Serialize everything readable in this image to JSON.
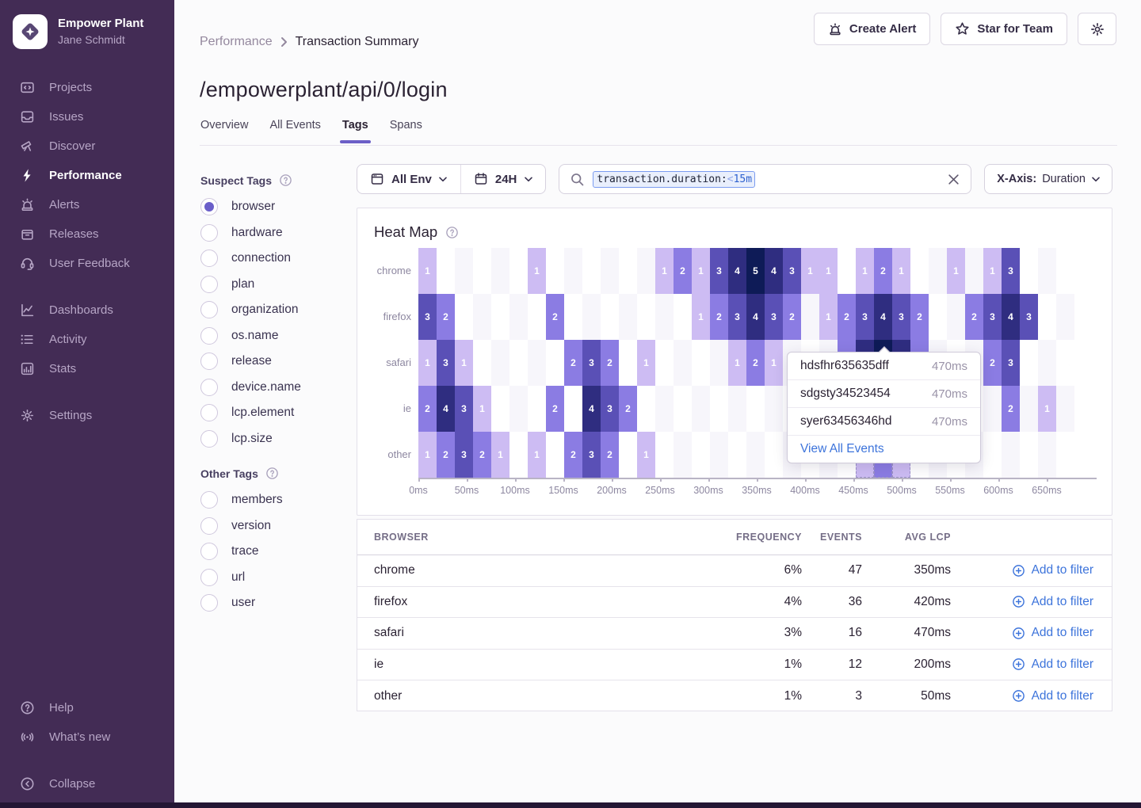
{
  "colors": {
    "accent": "#6C5FC7",
    "sidebar_bg": "#432c55",
    "link_blue": "#3d74db",
    "heat_scale": {
      "1": "#cdbcf3",
      "2": "#8b7ce3",
      "3": "#5a50b6",
      "4": "#2f2d80",
      "5": "#0e1b57"
    },
    "heat_empty_alt": "#f7f6fb"
  },
  "sidebar": {
    "org": "Empower Plant",
    "user": "Jane Schmidt",
    "sections": [
      {
        "items": [
          {
            "label": "Projects",
            "icon": "projects"
          },
          {
            "label": "Issues",
            "icon": "issues"
          },
          {
            "label": "Discover",
            "icon": "discover"
          },
          {
            "label": "Performance",
            "icon": "performance",
            "active": true
          },
          {
            "label": "Alerts",
            "icon": "alerts"
          },
          {
            "label": "Releases",
            "icon": "releases"
          },
          {
            "label": "User Feedback",
            "icon": "feedback"
          }
        ]
      },
      {
        "items": [
          {
            "label": "Dashboards",
            "icon": "dashboards"
          },
          {
            "label": "Activity",
            "icon": "activity"
          },
          {
            "label": "Stats",
            "icon": "stats"
          }
        ]
      },
      {
        "items": [
          {
            "label": "Settings",
            "icon": "settings"
          }
        ]
      }
    ],
    "footer": [
      {
        "label": "Help",
        "icon": "help"
      },
      {
        "label": "What’s new",
        "icon": "broadcast"
      }
    ],
    "collapse": {
      "label": "Collapse",
      "icon": "collapse"
    }
  },
  "topbar": {
    "create_alert": "Create Alert",
    "star_for_team": "Star for Team"
  },
  "breadcrumb": {
    "parent": "Performance",
    "current": "Transaction Summary"
  },
  "page": {
    "title": "/empowerplant/api/0/login"
  },
  "tabs": {
    "items": [
      "Overview",
      "All Events",
      "Tags",
      "Spans"
    ],
    "active": "Tags"
  },
  "filters": {
    "env": "All Env",
    "time": "24H",
    "search_key": "transaction.duration:",
    "search_op": "<",
    "search_val": "15m",
    "xaxis_label": "X-Axis:",
    "xaxis_value": "Duration"
  },
  "tag_rail": {
    "suspect_title": "Suspect Tags",
    "suspect": [
      "browser",
      "hardware",
      "connection",
      "plan",
      "organization",
      "os.name",
      "release",
      "device.name",
      "lcp.element",
      "lcp.size"
    ],
    "selected": "browser",
    "other_title": "Other Tags",
    "other": [
      "members",
      "version",
      "trace",
      "url",
      "user"
    ]
  },
  "heatmap": {
    "title": "Heat Map",
    "x_labels": [
      "0ms",
      "50ms",
      "100ms",
      "150ms",
      "200ms",
      "250ms",
      "300ms",
      "350ms",
      "400ms",
      "450ms",
      "500ms",
      "550ms",
      "600ms",
      "650ms"
    ],
    "columns": 36,
    "rows": [
      {
        "label": "chrome",
        "cells": {
          "0": 1,
          "6": 1,
          "13": 1,
          "14": 2,
          "15": 1,
          "16": 3,
          "17": 4,
          "18": 5,
          "19": 4,
          "20": 3,
          "21": 1,
          "22": 1,
          "24": 1,
          "25": 2,
          "26": 1,
          "29": 1,
          "31": 1,
          "32": 3
        }
      },
      {
        "label": "firefox",
        "cells": {
          "0": 3,
          "1": 2,
          "7": 2,
          "15": 1,
          "16": 2,
          "17": 3,
          "18": 4,
          "19": 3,
          "20": 2,
          "22": 1,
          "23": 2,
          "24": 3,
          "25": 4,
          "26": 3,
          "27": 2,
          "30": 2,
          "31": 3,
          "32": 4,
          "33": 3
        }
      },
      {
        "label": "safari",
        "cells": {
          "0": 1,
          "1": 3,
          "2": 1,
          "8": 2,
          "9": 3,
          "10": 2,
          "12": 1,
          "17": 1,
          "18": 2,
          "19": 1,
          "23": 2,
          "24": 4,
          "25": 5,
          "26": 4,
          "27": 2,
          "31": 2,
          "32": 3
        }
      },
      {
        "label": "ie",
        "cells": {
          "0": 2,
          "1": 4,
          "2": 3,
          "3": 1,
          "7": 2,
          "9": 4,
          "10": 3,
          "11": 2,
          "32": 2,
          "34": 1
        }
      },
      {
        "label": "other",
        "cells": {
          "0": 1,
          "1": 2,
          "2": 3,
          "3": 2,
          "4": 1,
          "6": 1,
          "8": 2,
          "9": 3,
          "10": 2,
          "12": 1,
          "24": 1,
          "25": 2,
          "26": 1
        }
      }
    ],
    "dashed_cells": [
      [
        4,
        24
      ],
      [
        4,
        25
      ],
      [
        4,
        26
      ]
    ]
  },
  "tooltip": {
    "items": [
      {
        "id": "hdsfhr635635dff",
        "value": "470ms"
      },
      {
        "id": "sdgsty34523454",
        "value": "470ms"
      },
      {
        "id": "syer63456346hd",
        "value": "470ms"
      }
    ],
    "action": "View All Events"
  },
  "table": {
    "headers": [
      "BROWSER",
      "FREQUENCY",
      "EVENTS",
      "AVG LCP"
    ],
    "action_label": "Add to filter",
    "rows": [
      {
        "browser": "chrome",
        "frequency": "6%",
        "events": "47",
        "avg_lcp": "350ms"
      },
      {
        "browser": "firefox",
        "frequency": "4%",
        "events": "36",
        "avg_lcp": "420ms"
      },
      {
        "browser": "safari",
        "frequency": "3%",
        "events": "16",
        "avg_lcp": "470ms"
      },
      {
        "browser": "ie",
        "frequency": "1%",
        "events": "12",
        "avg_lcp": "200ms"
      },
      {
        "browser": "other",
        "frequency": "1%",
        "events": "3",
        "avg_lcp": "50ms"
      }
    ]
  }
}
